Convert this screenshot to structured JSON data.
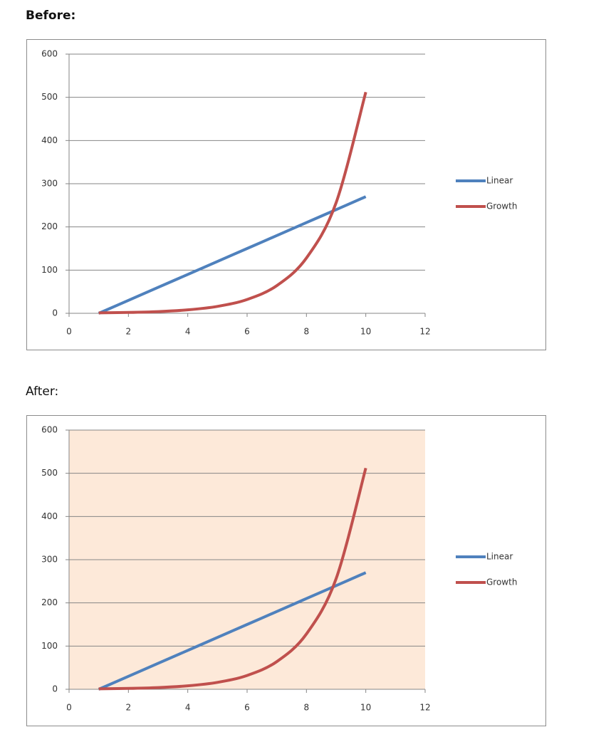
{
  "chart_data": [
    {
      "type": "line",
      "title": "Before:",
      "title_weight": "bold",
      "x": [
        1,
        2,
        3,
        4,
        5,
        6,
        7,
        8,
        9,
        10
      ],
      "series": [
        {
          "name": "Linear",
          "color": "#4f81bd",
          "values": [
            0,
            30,
            60,
            90,
            120,
            150,
            180,
            210,
            240,
            270
          ]
        },
        {
          "name": "Growth",
          "color": "#c0504d",
          "values": [
            1,
            2,
            4,
            8,
            16,
            32,
            64,
            128,
            256,
            512
          ]
        }
      ],
      "xlim": [
        0,
        12
      ],
      "xticks": [
        0,
        2,
        4,
        6,
        8,
        10,
        12
      ],
      "ylim": [
        0,
        600
      ],
      "yticks": [
        0,
        100,
        200,
        300,
        400,
        500,
        600
      ],
      "grid": true,
      "smooth": true,
      "legend": "right",
      "plot_background": "#ffffff"
    },
    {
      "type": "line",
      "title": "After:",
      "title_weight": "normal",
      "x": [
        1,
        2,
        3,
        4,
        5,
        6,
        7,
        8,
        9,
        10
      ],
      "series": [
        {
          "name": "Linear",
          "color": "#4f81bd",
          "values": [
            0,
            30,
            60,
            90,
            120,
            150,
            180,
            210,
            240,
            270
          ]
        },
        {
          "name": "Growth",
          "color": "#c0504d",
          "values": [
            1,
            2,
            4,
            8,
            16,
            32,
            64,
            128,
            256,
            512
          ]
        }
      ],
      "xlim": [
        0,
        12
      ],
      "xticks": [
        0,
        2,
        4,
        6,
        8,
        10,
        12
      ],
      "ylim": [
        0,
        600
      ],
      "yticks": [
        0,
        100,
        200,
        300,
        400,
        500,
        600
      ],
      "grid": true,
      "smooth": true,
      "legend": "right",
      "plot_background": "#fde9d9"
    }
  ]
}
